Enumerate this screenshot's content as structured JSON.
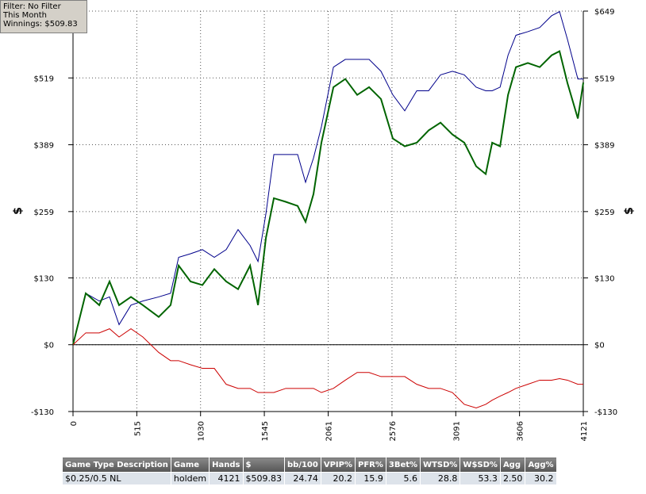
{
  "filter_box": {
    "lines": [
      "Filter: No Filter",
      "This Month",
      "Winnings: $509.83"
    ]
  },
  "chart_data": {
    "type": "line",
    "y_label": "$",
    "y2_label": "$",
    "x": [
      0,
      103,
      212,
      295,
      372,
      468,
      564,
      692,
      788,
      853,
      949,
      1045,
      1141,
      1237,
      1333,
      1430,
      1494,
      1558,
      1622,
      1718,
      1814,
      1878,
      1942,
      2006,
      2103,
      2199,
      2295,
      2391,
      2487,
      2583,
      2679,
      2776,
      2872,
      2968,
      3064,
      3160,
      3256,
      3333,
      3385,
      3449,
      3513,
      3577,
      3673,
      3769,
      3865,
      3929,
      3993,
      4077,
      4121
    ],
    "series": [
      {
        "color": "#00008b",
        "values": [
          0,
          100,
          85,
          93,
          39,
          77,
          85,
          93,
          100,
          170,
          177,
          185,
          170,
          185,
          224,
          193,
          162,
          255,
          370,
          370,
          370,
          316,
          363,
          424,
          540,
          555,
          555,
          555,
          532,
          486,
          455,
          494,
          494,
          525,
          532,
          525,
          501,
          494,
          494,
          501,
          563,
          602,
          609,
          617,
          640,
          648,
          594,
          517,
          517
        ]
      },
      {
        "color": "#006400",
        "values": [
          0,
          100,
          77,
          123,
          77,
          93,
          77,
          54,
          77,
          154,
          123,
          116,
          147,
          123,
          108,
          154,
          77,
          208,
          285,
          278,
          270,
          239,
          293,
          393,
          501,
          517,
          486,
          501,
          478,
          401,
          386,
          393,
          417,
          432,
          409,
          393,
          347,
          332,
          393,
          386,
          486,
          540,
          548,
          540,
          563,
          571,
          509,
          440,
          510
        ]
      },
      {
        "color": "#cc0000",
        "values": [
          0,
          23,
          23,
          31,
          15,
          31,
          15,
          -15,
          -31,
          -31,
          -39,
          -46,
          -46,
          -77,
          -85,
          -85,
          -93,
          -93,
          -93,
          -85,
          -85,
          -85,
          -85,
          -93,
          -85,
          -69,
          -54,
          -54,
          -62,
          -62,
          -62,
          -77,
          -85,
          -85,
          -93,
          -116,
          -123,
          -116,
          -108,
          -100,
          -93,
          -85,
          -77,
          -69,
          -69,
          -66,
          -69,
          -77,
          -77
        ]
      }
    ],
    "xlim": [
      0,
      4121
    ],
    "xticks": [
      0,
      515,
      1030,
      1545,
      2061,
      2576,
      3091,
      3606,
      4121
    ],
    "ylim": [
      -130,
      649
    ],
    "yticks": [
      {
        "value": -130,
        "label": "-$130"
      },
      {
        "value": 0,
        "label": "$0"
      },
      {
        "value": 130,
        "label": "$130"
      },
      {
        "value": 259,
        "label": "$259"
      },
      {
        "value": 389,
        "label": "$389"
      },
      {
        "value": 519,
        "label": "$519"
      },
      {
        "value": 649,
        "label": "$649"
      }
    ],
    "grid": true
  },
  "table": {
    "header": [
      "Game Type Description",
      "Game",
      "Hands",
      "$",
      "bb/100",
      "VPIP%",
      "PFR%",
      "3Bet%",
      "WTSD%",
      "W$SD%",
      "Agg",
      "Agg%"
    ],
    "rows": [
      [
        "$0.25/0.5 NL",
        "holdem",
        "4121",
        "$509.83",
        "24.74",
        "20.2",
        "15.9",
        "5.6",
        "28.8",
        "53.3",
        "2.50",
        "30.2"
      ]
    ]
  }
}
